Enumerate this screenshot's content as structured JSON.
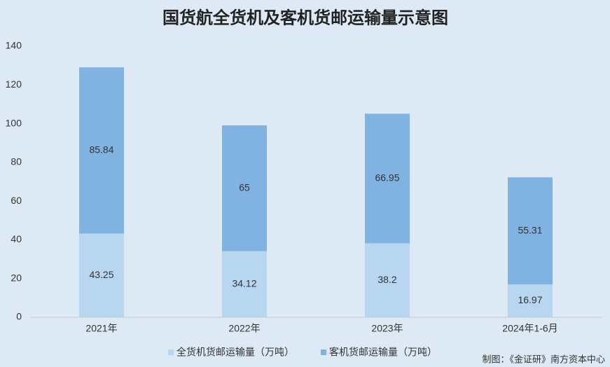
{
  "chart_data": {
    "type": "stacked_bar",
    "title": "国货航全货机及客机货邮运输量示意图",
    "categories": [
      "2021年",
      "2022年",
      "2023年",
      "2024年1-6月"
    ],
    "series": [
      {
        "name": "全货机货邮运输量（万吨）",
        "color": "#b9d6f0",
        "values": [
          43.25,
          34.12,
          38.2,
          16.97
        ]
      },
      {
        "name": "客机货邮运输量（万吨）",
        "color": "#80b3e1",
        "values": [
          85.84,
          65,
          66.95,
          55.31
        ]
      }
    ],
    "ylim": [
      0,
      140
    ],
    "yticks": [
      0,
      20,
      40,
      60,
      80,
      100,
      120,
      140
    ],
    "grid": false,
    "legend": "bottom",
    "source": "制图：《金证研》南方资本中心"
  }
}
